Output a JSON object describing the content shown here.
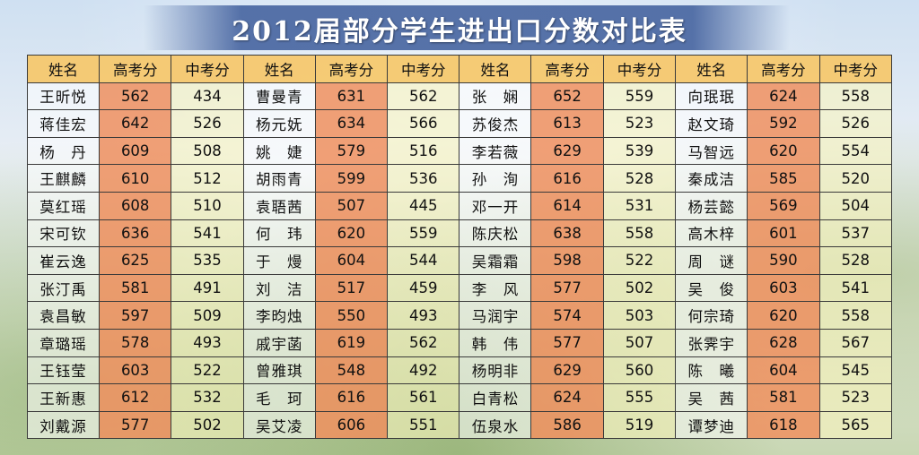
{
  "title": "2012届部分学生进出口分数对比表",
  "headers": [
    "姓名",
    "高考分",
    "中考分",
    "姓名",
    "高考分",
    "中考分",
    "姓名",
    "高考分",
    "中考分",
    "姓名",
    "高考分",
    "中考分"
  ],
  "rows": [
    [
      "王昕悦",
      "562",
      "434",
      "曹曼青",
      "631",
      "562",
      "张　娴",
      "652",
      "559",
      "向珉珉",
      "624",
      "558"
    ],
    [
      "蒋佳宏",
      "642",
      "526",
      "杨元妩",
      "634",
      "566",
      "苏俊杰",
      "613",
      "523",
      "赵文琦",
      "592",
      "526"
    ],
    [
      "杨　丹",
      "609",
      "508",
      "姚　婕",
      "579",
      "516",
      "李若薇",
      "629",
      "539",
      "马智远",
      "620",
      "554"
    ],
    [
      "王麒麟",
      "610",
      "512",
      "胡雨青",
      "599",
      "536",
      "孙　洵",
      "616",
      "528",
      "秦成洁",
      "585",
      "520"
    ],
    [
      "莫红瑶",
      "608",
      "510",
      "袁䎸茜",
      "507",
      "445",
      "邓一开",
      "614",
      "531",
      "杨芸懿",
      "569",
      "504"
    ],
    [
      "宋可钦",
      "636",
      "541",
      "何　玮",
      "620",
      "559",
      "陈庆松",
      "638",
      "558",
      "高木梓",
      "601",
      "537"
    ],
    [
      "崔云逸",
      "625",
      "535",
      "于　熳",
      "604",
      "544",
      "吴霜霜",
      "598",
      "522",
      "周　谜",
      "590",
      "528"
    ],
    [
      "张汀禹",
      "581",
      "491",
      "刘　洁",
      "517",
      "459",
      "李　风",
      "577",
      "502",
      "吴　俊",
      "603",
      "541"
    ],
    [
      "袁昌敏",
      "597",
      "509",
      "李昀烛",
      "550",
      "493",
      "马润宇",
      "574",
      "503",
      "何宗琦",
      "620",
      "558"
    ],
    [
      "章璐瑶",
      "578",
      "493",
      "戚宇菡",
      "619",
      "562",
      "韩　伟",
      "577",
      "507",
      "张霁宇",
      "628",
      "567"
    ],
    [
      "王钰莹",
      "603",
      "522",
      "曾雅琪",
      "548",
      "492",
      "杨明非",
      "629",
      "560",
      "陈　曦",
      "604",
      "545"
    ],
    [
      "王新惠",
      "612",
      "532",
      "毛　珂",
      "616",
      "561",
      "白青松",
      "624",
      "555",
      "吴　茜",
      "581",
      "523"
    ],
    [
      "刘戴源",
      "577",
      "502",
      "吴艾凌",
      "606",
      "551",
      "伍泉水",
      "586",
      "519",
      "谭梦迪",
      "618",
      "565"
    ]
  ]
}
